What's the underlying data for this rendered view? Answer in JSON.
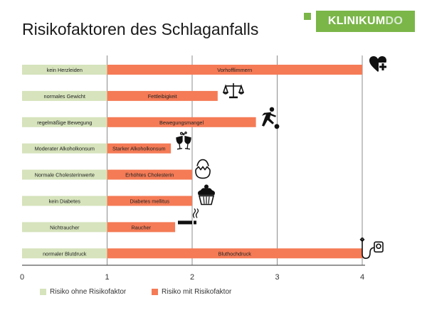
{
  "title": "Risikofaktoren des Schlaganfalls",
  "logo": {
    "text_main": "KLINIKUM",
    "text_accent": "DO",
    "colors": {
      "green": "#7ab648",
      "accent_text": "#d9ead3",
      "square": "#7ab648"
    }
  },
  "colors": {
    "baseline": "#d6e3bc",
    "risk": "#f47b56",
    "grid": "#8c8c8c"
  },
  "chart_data": {
    "type": "bar",
    "orientation": "horizontal",
    "stacked": true,
    "xlim": [
      0,
      4
    ],
    "xticks": [
      "0",
      "1",
      "2",
      "3",
      "4"
    ],
    "grid": true,
    "legend_position": "bottom",
    "series": [
      {
        "name": "Risiko ohne Risikofaktor",
        "color": "#d6e3bc"
      },
      {
        "name": "Risiko mit Risikofaktor",
        "color": "#f47b56"
      }
    ],
    "rows": [
      {
        "baseline_label": "kein Herzleiden",
        "risk_label": "Vorhofflimmern",
        "baseline": 1,
        "risk": 4.0,
        "icon": "heart-icon"
      },
      {
        "baseline_label": "normales Gewicht",
        "risk_label": "Fettleibigkeit",
        "baseline": 1,
        "risk": 2.3,
        "icon": "scale-icon"
      },
      {
        "baseline_label": "regelmäßige Bewegung",
        "risk_label": "Bewegungsmangel",
        "baseline": 1,
        "risk": 2.75,
        "icon": "soccer-player-icon"
      },
      {
        "baseline_label": "Moderater Alkoholkonsum",
        "risk_label": "Starker Alkoholkonsum",
        "baseline": 1,
        "risk": 1.75,
        "icon": "wine-glasses-icon"
      },
      {
        "baseline_label": "Normale Cholesterinwerte",
        "risk_label": "Erhöhtes Cholesterin",
        "baseline": 1,
        "risk": 2.0,
        "icon": "egg-icon"
      },
      {
        "baseline_label": "kein Diabetes",
        "risk_label": "Diabetes mellitus",
        "baseline": 1,
        "risk": 2.0,
        "icon": "cupcake-icon"
      },
      {
        "baseline_label": "Nichtraucher",
        "risk_label": "Raucher",
        "baseline": 1,
        "risk": 1.8,
        "icon": "cigarette-icon"
      },
      {
        "baseline_label": "normaler Blutdruck",
        "risk_label": "Bluthochdruck",
        "baseline": 1,
        "risk": 4.0,
        "icon": "blood-pressure-monitor-icon"
      }
    ]
  }
}
